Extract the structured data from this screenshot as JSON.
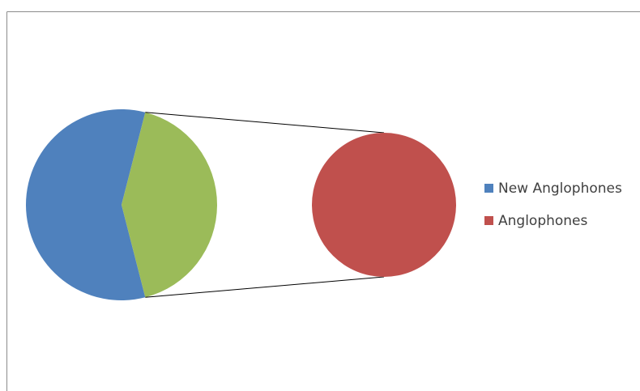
{
  "chart_data": {
    "type": "pie",
    "subtype": "pie-of-pie",
    "title": "",
    "primary_pie": {
      "slices": [
        {
          "name": "",
          "value": 58,
          "color": "#4F81BD"
        },
        {
          "name": "New Anglophones",
          "value": 42,
          "color": "#9BBB59",
          "exploded_to_secondary": true
        }
      ]
    },
    "secondary_pie": {
      "slices": [
        {
          "name": "Anglophones",
          "value": 100,
          "color": "#C0504D"
        }
      ]
    },
    "legend": {
      "position": "right",
      "entries": [
        {
          "label": "New Anglophones",
          "color": "#4F81BD"
        },
        {
          "label": "Anglophones",
          "color": "#C0504D"
        }
      ]
    },
    "connector_color": "#000000",
    "frame_color": "#8C8C8C"
  }
}
